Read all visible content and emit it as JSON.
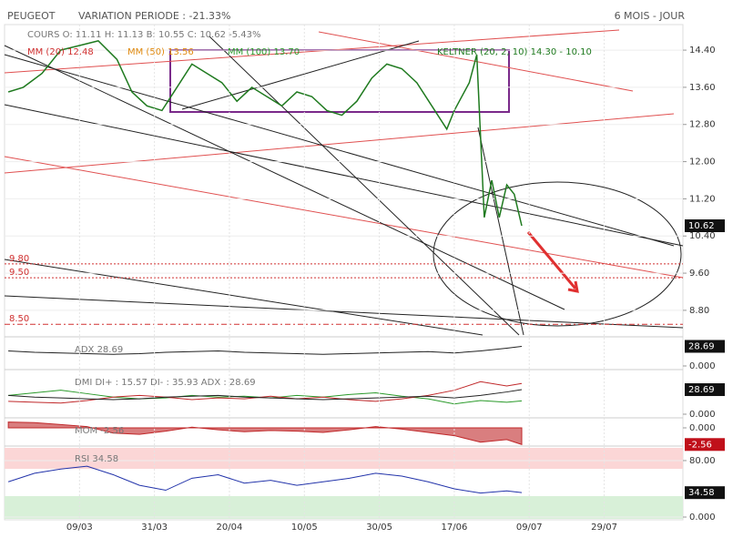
{
  "header": {
    "symbol": "PEUGEOT",
    "variation": "VARIATION PERIODE : -21.33%",
    "period": "6 MOIS - JOUR"
  },
  "chart_data": [
    {
      "type": "line",
      "title": "COURS O: 11.11 H: 11.13 B: 10.55 C: 10.62 -5.43%",
      "legend": [
        "MM (20) 12.48",
        "MM (50) 13.56",
        "MM (100) 13.70",
        "KELTNER (20, 2, 10) 14.30 - 10.10"
      ],
      "x": [
        -19,
        -15,
        -10,
        -5,
        0,
        5,
        10,
        14,
        18,
        22,
        26,
        30,
        34,
        38,
        42,
        46,
        50,
        54,
        58,
        62,
        66,
        70,
        74,
        78,
        82,
        86,
        90,
        94,
        98,
        100,
        104,
        106,
        108,
        110,
        112,
        114,
        116,
        118
      ],
      "series": [
        {
          "name": "COURS",
          "color": "#1f7a1f",
          "values": [
            13.5,
            13.6,
            13.9,
            14.4,
            14.5,
            14.6,
            14.2,
            13.5,
            13.2,
            13.1,
            13.6,
            14.1,
            13.9,
            13.7,
            13.3,
            13.6,
            13.4,
            13.2,
            13.5,
            13.4,
            13.1,
            13.0,
            13.3,
            13.8,
            14.1,
            14.0,
            13.7,
            13.2,
            12.7,
            13.1,
            13.7,
            14.3,
            10.8,
            11.6,
            10.8,
            11.5,
            11.3,
            10.62
          ]
        }
      ],
      "levels": [
        {
          "value": 9.8,
          "label": "9.80"
        },
        {
          "value": 9.5,
          "label": "9.50"
        },
        {
          "value": 8.5,
          "label": "8.50"
        }
      ],
      "xlim": [
        -20,
        161
      ],
      "ylim": [
        8.23,
        14.95
      ],
      "yticks": [
        {
          "value": 8.8,
          "label": "8.80"
        },
        {
          "value": 9.6,
          "label": "9.60"
        },
        {
          "value": 10.4,
          "label": "10.40"
        },
        {
          "value": 11.2,
          "label": "11.20"
        },
        {
          "value": 12.0,
          "label": "12.00"
        },
        {
          "value": 12.8,
          "label": "12.80"
        },
        {
          "value": 13.6,
          "label": "13.60"
        },
        {
          "value": 14.4,
          "label": "14.40"
        }
      ],
      "grid": true
    },
    {
      "type": "line",
      "title": "ADX 28.69",
      "x": [
        -19,
        -12,
        -5,
        2,
        9,
        16,
        23,
        30,
        37,
        44,
        51,
        58,
        65,
        72,
        79,
        86,
        93,
        100,
        107,
        114,
        118
      ],
      "series": [
        {
          "name": "ADX",
          "color": "#222222",
          "values": [
            22,
            20,
            19,
            18,
            17,
            18,
            20,
            21,
            22,
            20,
            19,
            18,
            17,
            18,
            19,
            20,
            21,
            19,
            22,
            26,
            28.69
          ]
        }
      ],
      "xlim": [
        -20,
        161
      ],
      "ylim": [
        0,
        40
      ],
      "yticks": [
        {
          "value": 0,
          "label": "0.000"
        }
      ]
    },
    {
      "type": "line",
      "title": "DMI DI+ : 15.57 DI- : 35.93 ADX : 28.69",
      "x": [
        -19,
        -12,
        -5,
        2,
        9,
        16,
        23,
        30,
        37,
        44,
        51,
        58,
        65,
        72,
        79,
        86,
        93,
        100,
        107,
        114,
        118
      ],
      "series": [
        {
          "name": "DI+",
          "color": "#2a9a2a",
          "values": [
            22,
            25,
            28,
            24,
            20,
            18,
            19,
            22,
            20,
            21,
            19,
            22,
            20,
            23,
            25,
            21,
            18,
            12,
            16,
            14,
            15.57
          ]
        },
        {
          "name": "DI-",
          "color": "#c0282a",
          "values": [
            15,
            14,
            13,
            16,
            20,
            22,
            20,
            17,
            19,
            18,
            21,
            18,
            20,
            17,
            15,
            18,
            22,
            28,
            38,
            33,
            35.93
          ]
        },
        {
          "name": "ADX",
          "color": "#222222",
          "values": [
            22,
            20,
            19,
            18,
            17,
            18,
            20,
            21,
            22,
            20,
            19,
            18,
            17,
            18,
            19,
            20,
            21,
            19,
            22,
            26,
            28.69
          ]
        }
      ],
      "xlim": [
        -20,
        161
      ],
      "ylim": [
        0,
        50
      ],
      "yticks": [
        {
          "value": 0,
          "label": "0.000"
        }
      ]
    },
    {
      "type": "area",
      "title": "MOM -2.56",
      "x": [
        -19,
        -12,
        -5,
        2,
        9,
        16,
        23,
        30,
        37,
        44,
        51,
        58,
        65,
        72,
        79,
        86,
        93,
        100,
        107,
        114,
        118
      ],
      "series": [
        {
          "name": "MOM",
          "color": "#c0282a",
          "values": [
            0.9,
            0.8,
            0.5,
            0.2,
            -0.8,
            -1.0,
            -0.5,
            0.1,
            -0.3,
            -0.6,
            -0.4,
            -0.5,
            -0.7,
            -0.3,
            0.2,
            -0.2,
            -0.7,
            -1.2,
            -2.2,
            -1.8,
            -2.56
          ]
        }
      ],
      "xlim": [
        -20,
        161
      ],
      "ylim": [
        -2.8,
        1.26
      ],
      "yticks": [
        {
          "value": 0,
          "label": "0.000"
        }
      ]
    },
    {
      "type": "line",
      "title": "RSI 34.58",
      "x": [
        -19,
        -12,
        -5,
        2,
        9,
        16,
        23,
        30,
        37,
        44,
        51,
        58,
        65,
        72,
        79,
        86,
        93,
        100,
        107,
        114,
        118
      ],
      "series": [
        {
          "name": "RSI",
          "color": "#2233aa",
          "values": [
            50,
            62,
            68,
            72,
            60,
            45,
            38,
            55,
            60,
            48,
            52,
            45,
            50,
            55,
            62,
            58,
            50,
            40,
            34,
            37,
            34.58
          ]
        }
      ],
      "xlim": [
        -20,
        161
      ],
      "ylim": [
        0,
        98
      ],
      "yticks": [
        {
          "value": 0,
          "label": "0.000"
        },
        {
          "value": 80,
          "label": "80.00"
        }
      ],
      "xticks": [
        {
          "value": 0,
          "label": "09/03"
        },
        {
          "value": 20,
          "label": "31/03"
        },
        {
          "value": 40,
          "label": "20/04"
        },
        {
          "value": 60,
          "label": "10/05"
        },
        {
          "value": 80,
          "label": "30/05"
        },
        {
          "value": 100,
          "label": "17/06"
        },
        {
          "value": 120,
          "label": "09/07"
        },
        {
          "value": 140,
          "label": "29/07"
        }
      ],
      "grid": true
    }
  ]
}
